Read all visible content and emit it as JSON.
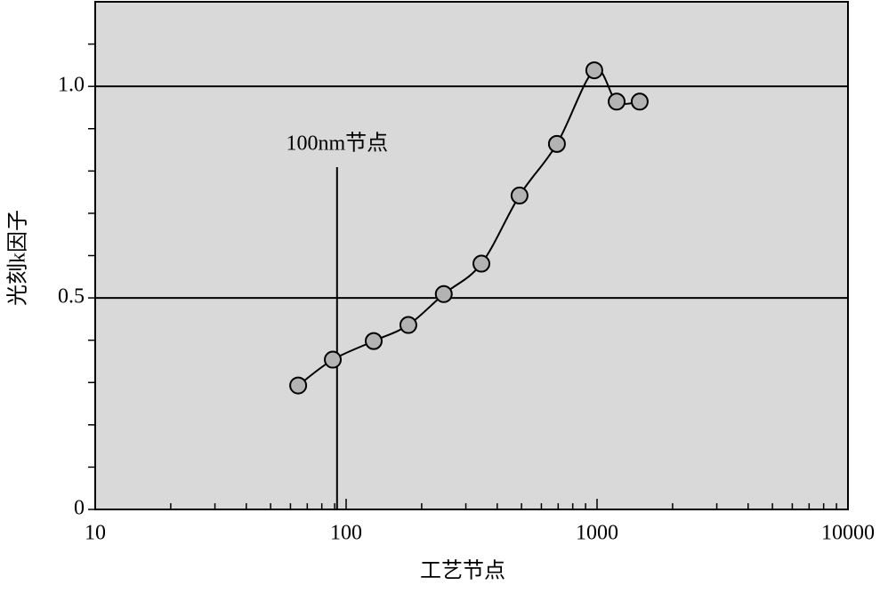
{
  "chart_data": {
    "type": "line",
    "xlabel": "工艺节点",
    "ylabel": "光刻k因子",
    "x": [
      64.4,
      88.5,
      128.8,
      177,
      245,
      346,
      491,
      692,
      975,
      1197,
      1479
    ],
    "series": [
      {
        "values": [
          0.293,
          0.354,
          0.398,
          0.436,
          0.509,
          0.581,
          0.742,
          0.864,
          1.038,
          0.964,
          0.964
        ],
        "color": "#b3b3b3"
      }
    ],
    "xscale": "log",
    "xlim": [
      10,
      10000
    ],
    "xticks": [
      10,
      100,
      1000,
      10000
    ],
    "xminorticks": [
      20,
      30,
      40,
      50,
      60,
      70,
      80,
      90,
      200,
      300,
      400,
      500,
      600,
      700,
      800,
      900,
      2000,
      3000,
      4000,
      5000,
      6000,
      7000,
      8000,
      9000
    ],
    "ylim": [
      0,
      1.2
    ],
    "yticks": [
      0,
      0.5,
      {
        "value": 1,
        "label": "1.0"
      }
    ],
    "yminorticks": [
      0.1,
      0.2,
      0.3,
      0.4,
      0.6,
      0.7,
      0.8,
      0.9,
      1.1
    ],
    "grid": true,
    "background": "#d9d9d9",
    "annotations": [
      {
        "text": "100nm节点",
        "x": 92
      }
    ]
  }
}
